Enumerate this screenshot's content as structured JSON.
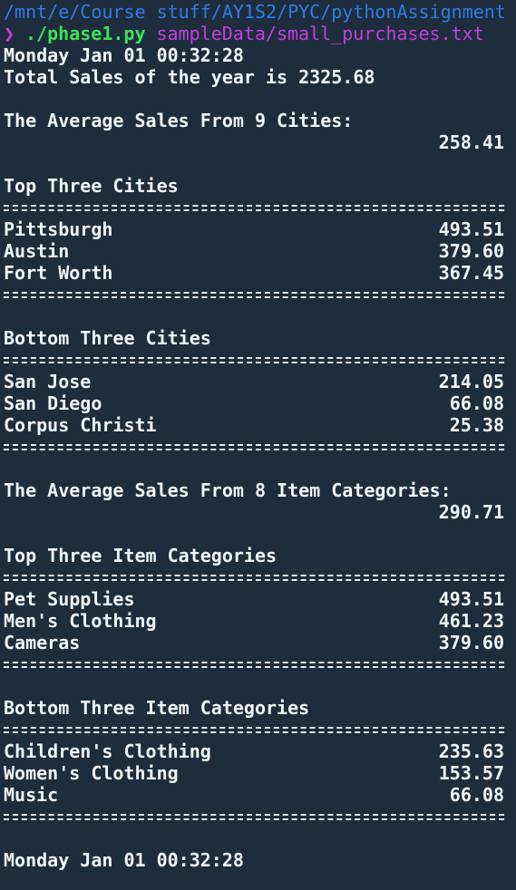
{
  "prompt": {
    "path": "/mnt/e/Course stuff/AY1S2/PYC/pythonAssignment",
    "arrow": "❯",
    "command": "./phase1.py",
    "argument": "sampleData/small_purchases.txt"
  },
  "output": {
    "start_time": "Monday Jan 01 00:32:28",
    "total_sales": "Total Sales of the year is 2325.68",
    "avg_cities_label": "The Average Sales From 9 Cities:",
    "avg_cities_value": "258.41",
    "top_cities_title": "Top Three Cities",
    "top_cities": [
      {
        "name": "Pittsburgh",
        "value": "493.51"
      },
      {
        "name": "Austin",
        "value": "379.60"
      },
      {
        "name": "Fort Worth",
        "value": "367.45"
      }
    ],
    "bottom_cities_title": "Bottom Three Cities",
    "bottom_cities": [
      {
        "name": "San Jose",
        "value": "214.05"
      },
      {
        "name": "San Diego",
        "value": "66.08"
      },
      {
        "name": "Corpus Christi",
        "value": "25.38"
      }
    ],
    "avg_categories_label": "The Average Sales From 8 Item Categories:",
    "avg_categories_value": "290.71",
    "top_categories_title": "Top Three Item Categories",
    "top_categories": [
      {
        "name": "Pet Supplies",
        "value": "493.51"
      },
      {
        "name": "Men's Clothing",
        "value": "461.23"
      },
      {
        "name": "Cameras",
        "value": "379.60"
      }
    ],
    "bottom_categories_title": "Bottom Three Item Categories",
    "bottom_categories": [
      {
        "name": "Children's Clothing",
        "value": "235.63"
      },
      {
        "name": "Women's Clothing",
        "value": "153.57"
      },
      {
        "name": "Music",
        "value": "66.08"
      }
    ],
    "end_time": "Monday Jan 01 00:32:28"
  },
  "colors": {
    "background": "#1e2d3e",
    "path": "#2f7be0",
    "prompt_arrow": "#d63adb",
    "command": "#3fe05a",
    "argument": "#c33fd8",
    "text": "#f2f4f6"
  }
}
